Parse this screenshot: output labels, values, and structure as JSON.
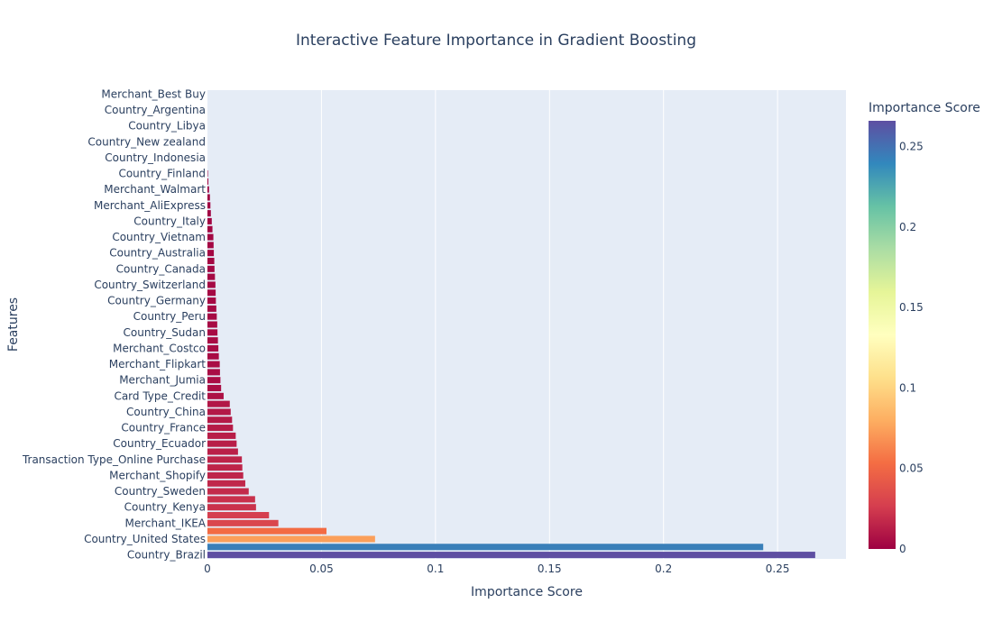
{
  "chart_data": {
    "type": "bar",
    "orientation": "horizontal",
    "title": "Interactive Feature Importance in Gradient Boosting",
    "xlabel": "Importance Score",
    "ylabel": "Features",
    "xlim": [
      0,
      0.28
    ],
    "x_ticks": [
      "0",
      "0.05",
      "0.1",
      "0.15",
      "0.2",
      "0.25"
    ],
    "x_tick_values": [
      0,
      0.05,
      0.1,
      0.15,
      0.2,
      0.25
    ],
    "grid": "vertical",
    "colorscale": "Spectral",
    "colorbar": {
      "title": "Importance Score",
      "range": [
        0,
        0.266
      ],
      "ticks": [
        "0",
        "0.05",
        "0.1",
        "0.15",
        "0.2",
        "0.25"
      ],
      "tick_values": [
        0,
        0.05,
        0.1,
        0.15,
        0.2,
        0.25
      ]
    },
    "bars": [
      {
        "label": "Merchant_Best Buy",
        "value": 0.0
      },
      {
        "label": "",
        "value": 0.0
      },
      {
        "label": "Country_Argentina",
        "value": 0.0
      },
      {
        "label": "",
        "value": 0.0
      },
      {
        "label": "Country_Libya",
        "value": 0.0
      },
      {
        "label": "",
        "value": 0.0
      },
      {
        "label": "Country_New zealand",
        "value": 0.0
      },
      {
        "label": "",
        "value": 0.0
      },
      {
        "label": "Country_Indonesia",
        "value": 0.0
      },
      {
        "label": "",
        "value": 0.0
      },
      {
        "label": "Country_Finland",
        "value": 0.0002
      },
      {
        "label": "",
        "value": 0.0004
      },
      {
        "label": "Merchant_Walmart",
        "value": 0.0007
      },
      {
        "label": "",
        "value": 0.0011
      },
      {
        "label": "Merchant_AliExpress",
        "value": 0.0013
      },
      {
        "label": "",
        "value": 0.0015
      },
      {
        "label": "Country_Italy",
        "value": 0.0019
      },
      {
        "label": "",
        "value": 0.0022
      },
      {
        "label": "Country_Vietnam",
        "value": 0.0026
      },
      {
        "label": "",
        "value": 0.0027
      },
      {
        "label": "Country_Australia",
        "value": 0.0028
      },
      {
        "label": "",
        "value": 0.003
      },
      {
        "label": "Country_Canada",
        "value": 0.0031
      },
      {
        "label": "",
        "value": 0.0033
      },
      {
        "label": "Country_Switzerland",
        "value": 0.0035
      },
      {
        "label": "",
        "value": 0.0036
      },
      {
        "label": "Country_Germany",
        "value": 0.0037
      },
      {
        "label": "",
        "value": 0.0039
      },
      {
        "label": "Country_Peru",
        "value": 0.0041
      },
      {
        "label": "",
        "value": 0.0043
      },
      {
        "label": "Country_Sudan",
        "value": 0.0044
      },
      {
        "label": "",
        "value": 0.0046
      },
      {
        "label": "Merchant_Costco",
        "value": 0.0048
      },
      {
        "label": "",
        "value": 0.005
      },
      {
        "label": "Merchant_Flipkart",
        "value": 0.0054
      },
      {
        "label": "",
        "value": 0.0055
      },
      {
        "label": "Merchant_Jumia",
        "value": 0.0057
      },
      {
        "label": "",
        "value": 0.006
      },
      {
        "label": "Card Type_Credit",
        "value": 0.0071
      },
      {
        "label": "",
        "value": 0.0098
      },
      {
        "label": "Country_China",
        "value": 0.0102
      },
      {
        "label": "",
        "value": 0.0108
      },
      {
        "label": "Country_France",
        "value": 0.0112
      },
      {
        "label": "",
        "value": 0.0124
      },
      {
        "label": "Country_Ecuador",
        "value": 0.0128
      },
      {
        "label": "",
        "value": 0.0134
      },
      {
        "label": "Transaction Type_Online Purchase",
        "value": 0.0151
      },
      {
        "label": "",
        "value": 0.0153
      },
      {
        "label": "Merchant_Shopify",
        "value": 0.0157
      },
      {
        "label": "",
        "value": 0.0166
      },
      {
        "label": "Country_Sweden",
        "value": 0.0181
      },
      {
        "label": "",
        "value": 0.0209
      },
      {
        "label": "Country_Kenya",
        "value": 0.0213
      },
      {
        "label": "",
        "value": 0.027
      },
      {
        "label": "Merchant_IKEA",
        "value": 0.0311
      },
      {
        "label": "",
        "value": 0.0522
      },
      {
        "label": "Country_United States",
        "value": 0.0735
      },
      {
        "label": "",
        "value": 0.2437
      },
      {
        "label": "Country_Brazil",
        "value": 0.2665
      }
    ]
  }
}
